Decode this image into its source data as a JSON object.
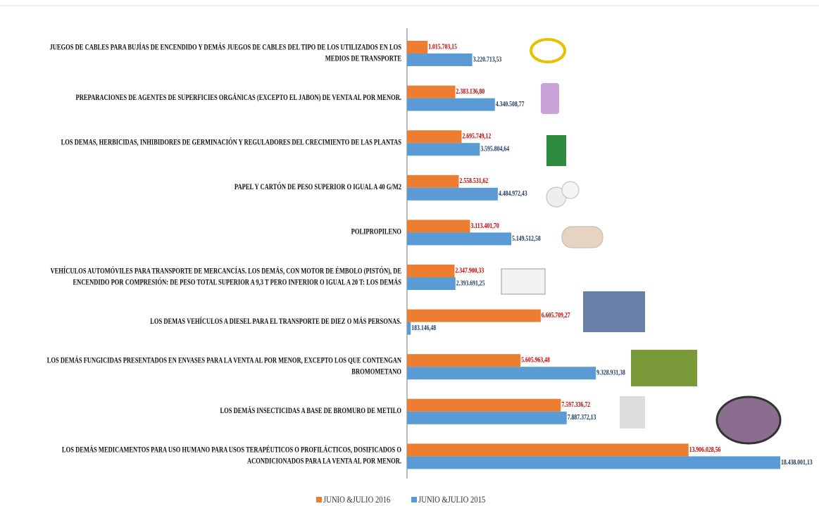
{
  "chart_data": {
    "type": "bar",
    "orientation": "horizontal",
    "categories": [
      "JUEGOS DE CABLES PARA BUJÍAS DE ENCENDIDO Y DEMÁS JUEGOS DE CABLES DEL TIPO DE LOS UTILIZADOS EN LOS\nMEDIOS DE TRANSPORTE",
      "PREPARACIONES DE AGENTES DE SUPERFICIES ORGÁNICAS (EXCEPTO EL JABON) DE VENTA AL POR MENOR.",
      "LOS DEMAS, HERBICIDAS, INHIBIDORES DE GERMINACIÓN Y REGULADORES DEL CRECIMIENTO DE LAS PLANTAS",
      "PAPEL Y CARTÓN DE PESO SUPERIOR O IGUAL A 40 G/M2",
      "POLIPROPILENO",
      "VEHÍCULOS AUTOMÓVILES PARA TRANSPORTE DE MERCANCÍAS. LOS DEMÁS, CON MOTOR DE ÉMBOLO (PISTÓN), DE\nENCENDIDO POR COMPRESIÓN: DE PESO TOTAL SUPERIOR A 9,3 T PERO INFERIOR O IGUAL A 20 T: LOS DEMÁS",
      "LOS DEMAS VEHÍCULOS A DIESEL PARA EL TRANSPORTE DE DIEZ O MÁS PERSONAS.",
      "LOS DEMÁS FUNGICIDAS PRESENTADOS EN ENVASES PARA LA VENTA AL POR MENOR, EXCEPTO LOS QUE CONTENGAN\nBROMOMETANO",
      "LOS DEMÁS INSECTICIDAS A BASE DE BROMURO DE METILO",
      "LOS DEMÁS MEDICAMENTOS PARA USO HUMANO PARA USOS TERAPÉUTICOS O PROFILÁCTICOS, DOSIFICADOS O\nACONDICIONADOS PARA LA VENTA AL POR MENOR."
    ],
    "series": [
      {
        "name": "JUNIO &JULIO 2016",
        "color": "#ED7D31",
        "label_color": "#C00000",
        "values": [
          1015703.15,
          2383136.8,
          2695749.12,
          2558531.62,
          3113401.7,
          2347900.33,
          6605709.27,
          5605963.48,
          7597336.72,
          13906028.56
        ],
        "value_labels": [
          "1.015.703,15",
          "2.383.136,80",
          "2.695.749,12",
          "2.558.531,62",
          "3.113.401,70",
          "2.347.900,33",
          "6.605.709,27",
          "5.605.963,48",
          "7.597.336,72",
          "13.906.028,56"
        ]
      },
      {
        "name": "JUNIO &JULIO 2015",
        "color": "#5B9BD5",
        "label_color": "#1F3864",
        "values": [
          3220713.53,
          4340508.77,
          3595804.64,
          4484972.43,
          5149512.58,
          2393691.25,
          183146.48,
          9328931.38,
          7887372.13,
          18438001.13
        ],
        "value_labels": [
          "3.220.713,53",
          "4.340.508,77",
          "3.595.804,64",
          "4.484.972,43",
          "5.149.512,58",
          "2.393.691,25",
          "183.146,48",
          "9.328.931,38",
          "7.887.372,13",
          "18.438.001,13"
        ]
      }
    ],
    "legend": "bottom"
  }
}
